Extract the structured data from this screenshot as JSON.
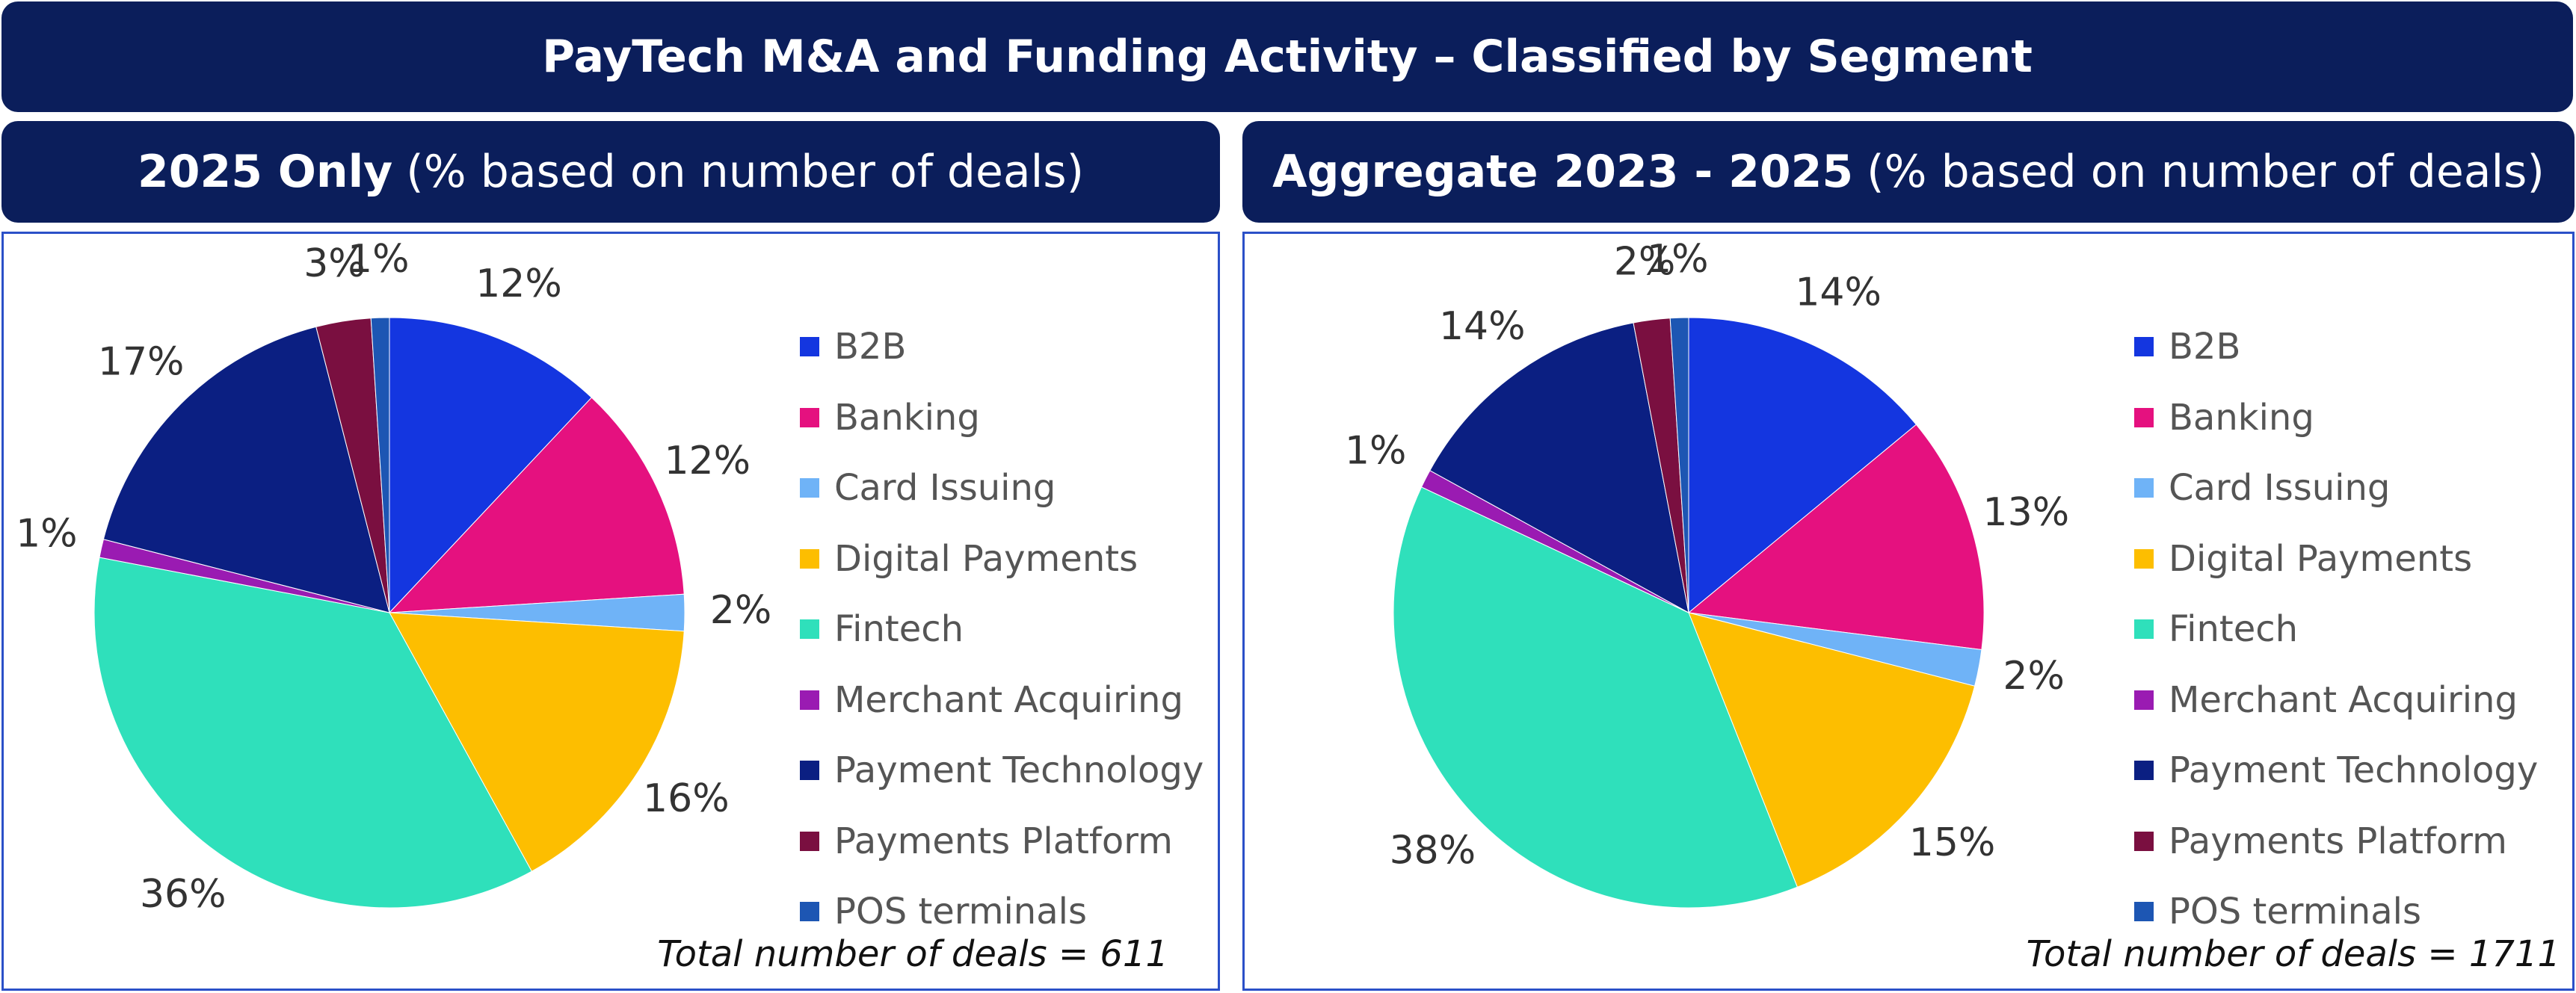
{
  "title": "PayTech M&A and Funding Activity – Classified by Segment",
  "legend": [
    "B2B",
    "Banking",
    "Card Issuing",
    "Digital Payments",
    "Fintech",
    "Merchant Acquiring",
    "Payment Technology",
    "Payments Platform",
    "POS terminals"
  ],
  "colors": [
    "#1436e0",
    "#e5117f",
    "#6fb3f7",
    "#fdbe00",
    "#2fe0bb",
    "#9a1bb2",
    "#0b1f82",
    "#7a0f40",
    "#1d56b3"
  ],
  "chart_data": [
    {
      "type": "pie",
      "title_bold": "2025 Only",
      "title_rest": "(% based on number of deals)",
      "categories": [
        "B2B",
        "Banking",
        "Card Issuing",
        "Digital Payments",
        "Fintech",
        "Merchant Acquiring",
        "Payment Technology",
        "Payments Platform",
        "POS terminals"
      ],
      "values": [
        12,
        12,
        2,
        16,
        36,
        1,
        17,
        3,
        1
      ],
      "labels": [
        "12%",
        "12%",
        "2%",
        "16%",
        "36%",
        "1%",
        "17%",
        "3%",
        "1%"
      ],
      "legend_placement": "right",
      "total_text": "Total number of deals = 611"
    },
    {
      "type": "pie",
      "title_bold": "Aggregate 2023 - 2025",
      "title_rest": "(% based on number of deals)",
      "categories": [
        "B2B",
        "Banking",
        "Card Issuing",
        "Digital Payments",
        "Fintech",
        "Merchant Acquiring",
        "Payment Technology",
        "Payments Platform",
        "POS terminals"
      ],
      "values": [
        14,
        13,
        2,
        15,
        38,
        1,
        14,
        2,
        1
      ],
      "labels": [
        "14%",
        "13%",
        "2%",
        "15%",
        "38%",
        "1%",
        "14%",
        "2%",
        "1%"
      ],
      "legend_placement": "right",
      "total_text": "Total number of deals = 1711"
    }
  ]
}
